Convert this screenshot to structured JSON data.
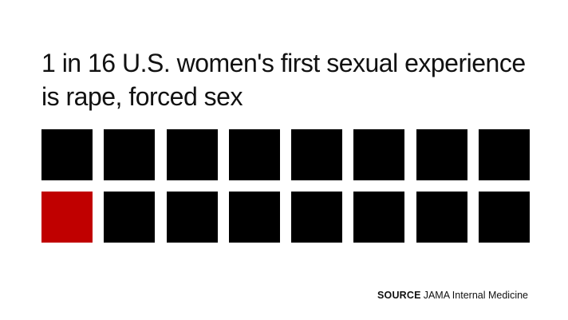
{
  "chart_data": {
    "type": "waffle",
    "title": "1 in 16 U.S. women's first sexual experience is rape, forced sex",
    "total": 16,
    "highlighted": 1,
    "highlighted_index": 8,
    "columns": 8,
    "rows": 2,
    "colors": {
      "highlight": "#c00000",
      "base": "#000000"
    }
  },
  "source": {
    "label": "SOURCE",
    "text": "JAMA Internal Medicine"
  }
}
